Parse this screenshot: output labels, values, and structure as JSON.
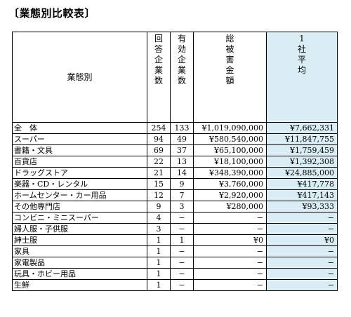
{
  "title": "〔業態別比較表〕",
  "headers": {
    "category": "業態別",
    "respondents": [
      "回",
      "答",
      "企",
      "業",
      "数"
    ],
    "valid": [
      "有",
      "効",
      "企",
      "業",
      "数"
    ],
    "total_damage": [
      "総",
      "被",
      "害",
      "金",
      "額"
    ],
    "average": [
      "1",
      "社",
      "平",
      "均"
    ]
  },
  "rows": [
    {
      "category": "全　体",
      "respondents": "254",
      "valid": "133",
      "total": "¥1,019,090,000",
      "average": "¥7,662,331"
    },
    {
      "category": "スーパー",
      "respondents": "94",
      "valid": "49",
      "total": "¥580,540,000",
      "average": "¥11,847,755"
    },
    {
      "category": "書籍・文具",
      "respondents": "69",
      "valid": "37",
      "total": "¥65,100,000",
      "average": "¥1,759,459"
    },
    {
      "category": "百貨店",
      "respondents": "22",
      "valid": "13",
      "total": "¥18,100,000",
      "average": "¥1,392,308"
    },
    {
      "category": "ドラッグストア",
      "respondents": "21",
      "valid": "14",
      "total": "¥348,390,000",
      "average": "¥24,885,000"
    },
    {
      "category": "楽器・CD・レンタル",
      "respondents": "15",
      "valid": "9",
      "total": "¥3,760,000",
      "average": "¥417,778"
    },
    {
      "category": "ホームセンター・カー用品",
      "respondents": "12",
      "valid": "7",
      "total": "¥2,920,000",
      "average": "¥417,143"
    },
    {
      "category": "その他専門店",
      "respondents": "9",
      "valid": "3",
      "total": "¥280,000",
      "average": "¥93,333"
    },
    {
      "category": "コンビニ・ミニスーパー",
      "respondents": "4",
      "valid": "−",
      "total": "−",
      "average": "−"
    },
    {
      "category": "婦人服・子供服",
      "respondents": "3",
      "valid": "−",
      "total": "−",
      "average": "−"
    },
    {
      "category": "紳士服",
      "respondents": "1",
      "valid": "1",
      "total": "¥0",
      "average": "¥0"
    },
    {
      "category": "家具",
      "respondents": "1",
      "valid": "−",
      "total": "−",
      "average": "−"
    },
    {
      "category": "家電製品",
      "respondents": "1",
      "valid": "−",
      "total": "−",
      "average": "−"
    },
    {
      "category": "玩具・ホビー用品",
      "respondents": "1",
      "valid": "−",
      "total": "−",
      "average": "−"
    },
    {
      "category": "生鮮",
      "respondents": "1",
      "valid": "−",
      "total": "−",
      "average": "−"
    }
  ]
}
